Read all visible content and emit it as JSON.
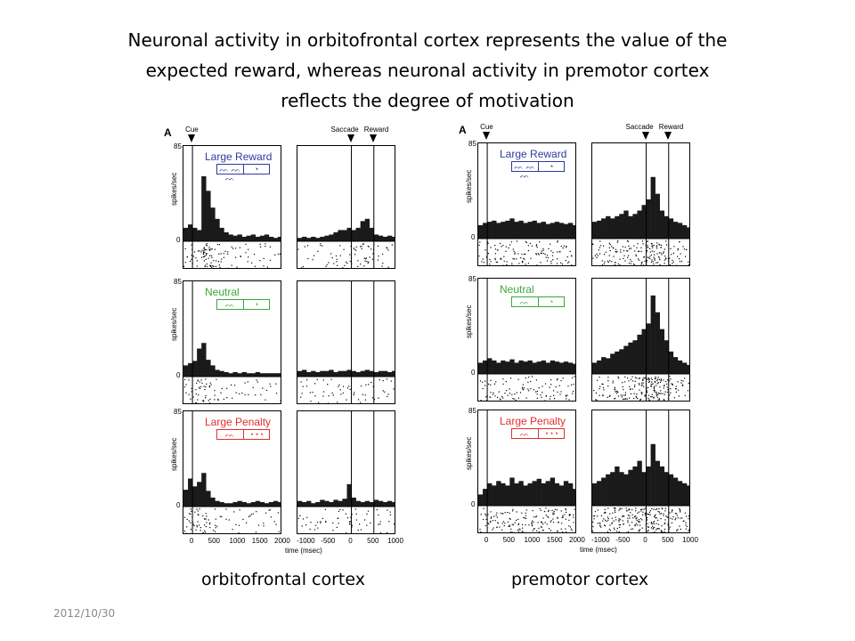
{
  "slide": {
    "title_lines": [
      "Neuronal activity in orbitofrontal cortex represents the value of the",
      "expected reward, whereas neuronal activity in premotor cortex",
      "reflects the degree of motivation"
    ],
    "captions": [
      "orbitofrontal cortex",
      "premotor cortex"
    ],
    "date": "2012/10/30"
  },
  "colors": {
    "reward": "#2e3a9c",
    "neutral": "#3aa83a",
    "penalty": "#e0302e",
    "bars": "#1a1a1a"
  },
  "chart_data": [
    {
      "type": "bar",
      "title": "orbitofrontal cortex",
      "panel_letter": "A",
      "events": {
        "cue": "Cue",
        "saccade": "Saccade",
        "reward": "Reward"
      },
      "ylabel": "spikes/sec",
      "ylim": [
        0,
        85
      ],
      "yticks": [
        "85",
        "0"
      ],
      "xlabel": "time (msec)",
      "xticks_left": [
        "0",
        "500",
        "1000",
        "1500",
        "2000"
      ],
      "xticks_right": [
        "-1000",
        "-500",
        "0",
        "500",
        "1000"
      ],
      "xlim_left": [
        -200,
        2000
      ],
      "xlim_right": [
        -1200,
        1000
      ],
      "conditions": [
        {
          "name": "Large Reward",
          "icons": [
            "ᨓ ᨓ ᨓ",
            "◔"
          ],
          "color_key": "reward",
          "left": [
            12,
            15,
            12,
            10,
            58,
            45,
            30,
            20,
            12,
            8,
            6,
            5,
            6,
            4,
            5,
            6,
            4,
            5,
            6,
            4,
            3,
            4
          ],
          "right": [
            3,
            4,
            3,
            4,
            3,
            4,
            5,
            6,
            8,
            10,
            10,
            12,
            10,
            12,
            18,
            20,
            12,
            6,
            5,
            4,
            5,
            4
          ]
        },
        {
          "name": "Neutral",
          "icons": [
            "ᨓ",
            "◔"
          ],
          "color_key": "neutral",
          "left": [
            10,
            12,
            14,
            25,
            30,
            15,
            10,
            6,
            5,
            4,
            3,
            4,
            3,
            4,
            3,
            3,
            4,
            3,
            3,
            3,
            3,
            3
          ],
          "right": [
            5,
            6,
            4,
            5,
            4,
            5,
            5,
            6,
            4,
            5,
            5,
            6,
            5,
            4,
            5,
            6,
            5,
            4,
            5,
            5,
            4,
            5
          ]
        },
        {
          "name": "Large Penalty",
          "icons": [
            "ᨓ",
            "◔◔◔"
          ],
          "color_key": "penalty",
          "left": [
            15,
            25,
            18,
            22,
            30,
            14,
            8,
            5,
            4,
            3,
            3,
            4,
            5,
            4,
            3,
            4,
            5,
            4,
            3,
            4,
            5,
            4
          ],
          "right": [
            5,
            4,
            5,
            3,
            4,
            6,
            5,
            4,
            6,
            5,
            7,
            20,
            8,
            5,
            4,
            5,
            4,
            6,
            5,
            4,
            5,
            4
          ]
        }
      ]
    },
    {
      "type": "bar",
      "title": "premotor cortex",
      "panel_letter": "A",
      "events": {
        "cue": "Cue",
        "saccade": "Saccade",
        "reward": "Reward"
      },
      "ylabel": "spikes/sec",
      "ylim": [
        0,
        85
      ],
      "yticks": [
        "85",
        "0"
      ],
      "xlabel": "time (msec)",
      "xticks_left": [
        "0",
        "500",
        "1000",
        "1500",
        "2000"
      ],
      "xticks_right": [
        "-1000",
        "-500",
        "0",
        "500",
        "1000"
      ],
      "xlim_left": [
        -200,
        2000
      ],
      "xlim_right": [
        -1200,
        1000
      ],
      "conditions": [
        {
          "name": "Large Reward",
          "icons": [
            "ᨓ ᨓ ᨓ",
            "◔"
          ],
          "color_key": "reward",
          "left": [
            12,
            14,
            15,
            16,
            14,
            15,
            16,
            18,
            15,
            16,
            14,
            15,
            16,
            14,
            15,
            13,
            14,
            15,
            14,
            13,
            14,
            12
          ],
          "right": [
            15,
            16,
            18,
            20,
            18,
            20,
            22,
            25,
            20,
            22,
            25,
            30,
            35,
            55,
            40,
            25,
            20,
            18,
            15,
            14,
            12,
            10
          ]
        },
        {
          "name": "Neutral",
          "icons": [
            "ᨓ",
            "◔"
          ],
          "color_key": "neutral",
          "left": [
            10,
            12,
            14,
            12,
            10,
            12,
            11,
            13,
            10,
            12,
            11,
            12,
            10,
            11,
            12,
            10,
            12,
            11,
            10,
            11,
            10,
            9
          ],
          "right": [
            10,
            12,
            15,
            14,
            18,
            20,
            22,
            25,
            28,
            30,
            35,
            40,
            45,
            70,
            55,
            40,
            30,
            20,
            15,
            12,
            10,
            8
          ]
        },
        {
          "name": "Large Penalty",
          "icons": [
            "ᨓ",
            "◔◔◔"
          ],
          "color_key": "penalty",
          "left": [
            10,
            15,
            20,
            18,
            22,
            20,
            18,
            25,
            20,
            22,
            18,
            20,
            22,
            24,
            20,
            22,
            25,
            20,
            18,
            22,
            20,
            15
          ],
          "right": [
            20,
            22,
            25,
            28,
            30,
            35,
            30,
            28,
            32,
            35,
            40,
            30,
            35,
            55,
            40,
            35,
            30,
            28,
            25,
            22,
            20,
            18
          ]
        }
      ]
    }
  ]
}
